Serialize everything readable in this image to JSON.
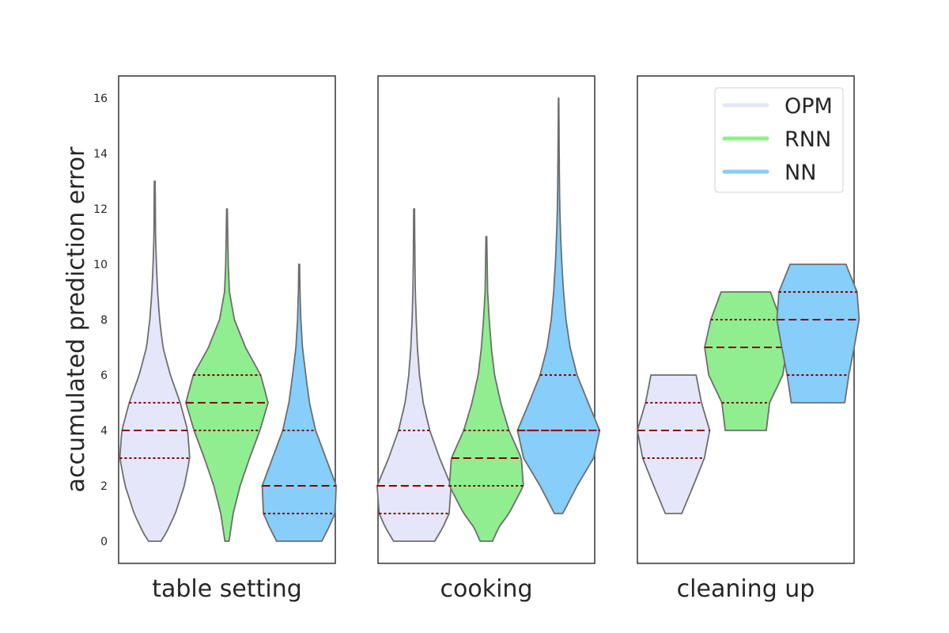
{
  "chart_data": {
    "type": "violin",
    "ylabel": "accumulated prediction error",
    "yticks": [
      0,
      2,
      4,
      6,
      8,
      10,
      12,
      14,
      16
    ],
    "ylim": [
      -0.8,
      16.8
    ],
    "legend": {
      "placement": "top-right of third panel",
      "entries": [
        {
          "name": "OPM",
          "color": "#e6e6fa"
        },
        {
          "name": "RNN",
          "color": "#90ee90"
        },
        {
          "name": "NN",
          "color": "#87cefa"
        }
      ]
    },
    "colors": {
      "violin_edge": "#6e6e6e",
      "quartile_line": "#8b0000",
      "frame": "#333333",
      "text": "#262626"
    },
    "panels": [
      {
        "label": "table setting",
        "violins": [
          {
            "series": "OPM",
            "min": 0,
            "max": 13,
            "q1": 3,
            "median": 4,
            "q3": 5,
            "profile": [
              [
                0,
                0.15
              ],
              [
                0.3,
                0.28
              ],
              [
                1,
                0.5
              ],
              [
                2,
                0.72
              ],
              [
                3,
                0.85
              ],
              [
                4,
                0.8
              ],
              [
                5,
                0.62
              ],
              [
                6,
                0.38
              ],
              [
                7,
                0.2
              ],
              [
                8,
                0.12
              ],
              [
                9,
                0.07
              ],
              [
                10,
                0.04
              ],
              [
                11,
                0.02
              ],
              [
                12,
                0.015
              ],
              [
                13,
                0.01
              ]
            ]
          },
          {
            "series": "RNN",
            "min": 0,
            "max": 12,
            "q1": 4,
            "median": 5,
            "q3": 6,
            "profile": [
              [
                0,
                0.05
              ],
              [
                1,
                0.15
              ],
              [
                2,
                0.32
              ],
              [
                3,
                0.55
              ],
              [
                4,
                0.8
              ],
              [
                5,
                1.0
              ],
              [
                6,
                0.82
              ],
              [
                7,
                0.45
              ],
              [
                8,
                0.18
              ],
              [
                9,
                0.06
              ],
              [
                10,
                0.03
              ],
              [
                11,
                0.02
              ],
              [
                12,
                0.01
              ]
            ]
          },
          {
            "series": "NN",
            "min": 0,
            "max": 10,
            "q1": 1,
            "median": 2,
            "q3": 4,
            "profile": [
              [
                0,
                0.55
              ],
              [
                0.5,
                0.72
              ],
              [
                1,
                0.87
              ],
              [
                2,
                0.9
              ],
              [
                3,
                0.65
              ],
              [
                4,
                0.4
              ],
              [
                5,
                0.25
              ],
              [
                6,
                0.16
              ],
              [
                7,
                0.08
              ],
              [
                8,
                0.04
              ],
              [
                9,
                0.02
              ],
              [
                10,
                0.01
              ]
            ]
          }
        ]
      },
      {
        "label": "cooking",
        "violins": [
          {
            "series": "OPM",
            "min": 0,
            "max": 12,
            "q1": 1,
            "median": 2,
            "q3": 4,
            "profile": [
              [
                0,
                0.5
              ],
              [
                0.5,
                0.7
              ],
              [
                1,
                0.85
              ],
              [
                2,
                0.9
              ],
              [
                3,
                0.62
              ],
              [
                4,
                0.38
              ],
              [
                5,
                0.22
              ],
              [
                6,
                0.13
              ],
              [
                7,
                0.08
              ],
              [
                8,
                0.05
              ],
              [
                9,
                0.03
              ],
              [
                10,
                0.02
              ],
              [
                11,
                0.015
              ],
              [
                12,
                0.01
              ]
            ]
          },
          {
            "series": "RNN",
            "min": 0,
            "max": 11,
            "q1": 2,
            "median": 3,
            "q3": 4,
            "profile": [
              [
                0,
                0.15
              ],
              [
                0.5,
                0.3
              ],
              [
                1,
                0.55
              ],
              [
                2,
                0.9
              ],
              [
                3,
                0.85
              ],
              [
                4,
                0.55
              ],
              [
                5,
                0.35
              ],
              [
                6,
                0.2
              ],
              [
                7,
                0.12
              ],
              [
                8,
                0.07
              ],
              [
                9,
                0.03
              ],
              [
                10,
                0.02
              ],
              [
                11,
                0.01
              ]
            ]
          },
          {
            "series": "NN",
            "min": 1,
            "max": 16,
            "q1": 4,
            "median": 4,
            "q3": 6,
            "profile": [
              [
                1,
                0.1
              ],
              [
                2,
                0.45
              ],
              [
                3,
                0.85
              ],
              [
                4,
                1.0
              ],
              [
                5,
                0.72
              ],
              [
                6,
                0.45
              ],
              [
                7,
                0.28
              ],
              [
                8,
                0.18
              ],
              [
                9,
                0.12
              ],
              [
                10,
                0.08
              ],
              [
                11,
                0.05
              ],
              [
                12,
                0.03
              ],
              [
                13,
                0.02
              ],
              [
                14,
                0.015
              ],
              [
                15,
                0.01
              ],
              [
                16,
                0.005
              ]
            ]
          }
        ]
      },
      {
        "label": "cleaning up",
        "violins": [
          {
            "series": "OPM",
            "min": 1,
            "max": 6,
            "q1": 3,
            "median": 4,
            "q3": 5,
            "profile": [
              [
                1,
                0.2
              ],
              [
                2,
                0.48
              ],
              [
                3,
                0.75
              ],
              [
                4,
                0.88
              ],
              [
                5,
                0.68
              ],
              [
                6,
                0.55
              ]
            ]
          },
          {
            "series": "RNN",
            "min": 4,
            "max": 9,
            "q1": 5,
            "median": 7,
            "q3": 8,
            "profile": [
              [
                4,
                0.5
              ],
              [
                5,
                0.58
              ],
              [
                6,
                0.9
              ],
              [
                7,
                1.0
              ],
              [
                8,
                0.85
              ],
              [
                9,
                0.6
              ]
            ]
          },
          {
            "series": "NN",
            "min": 5,
            "max": 10,
            "q1": 6,
            "median": 8,
            "q3": 9,
            "profile": [
              [
                5,
                0.65
              ],
              [
                6,
                0.75
              ],
              [
                7,
                0.88
              ],
              [
                8,
                1.0
              ],
              [
                9,
                0.95
              ],
              [
                10,
                0.68
              ]
            ]
          }
        ]
      }
    ]
  }
}
